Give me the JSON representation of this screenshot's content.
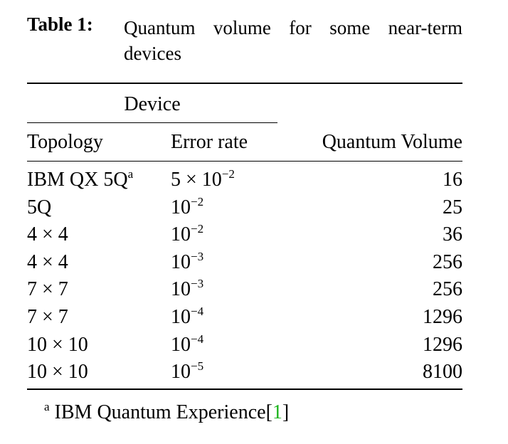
{
  "caption": {
    "label": "Table 1:",
    "text": "Quantum volume for some near-term devices"
  },
  "table": {
    "group_header": "Device",
    "headers": [
      "Topology",
      "Error rate",
      "Quantum Volume"
    ],
    "rows": [
      {
        "topology": "IBM QX 5Q",
        "note": "a",
        "error_base": "5 × 10",
        "error_exp": "−2",
        "volume": 16
      },
      {
        "topology": "5Q",
        "error_base": "10",
        "error_exp": "−2",
        "volume": 25
      },
      {
        "topology": "4 × 4",
        "error_base": "10",
        "error_exp": "−2",
        "volume": 36
      },
      {
        "topology": "4 × 4",
        "error_base": "10",
        "error_exp": "−3",
        "volume": 256
      },
      {
        "topology": "7 × 7",
        "error_base": "10",
        "error_exp": "−3",
        "volume": 256
      },
      {
        "topology": "7 × 7",
        "error_base": "10",
        "error_exp": "−4",
        "volume": 1296
      },
      {
        "topology": "10 × 10",
        "error_base": "10",
        "error_exp": "−4",
        "volume": 1296
      },
      {
        "topology": "10 × 10",
        "error_base": "10",
        "error_exp": "−5",
        "volume": 8100
      }
    ]
  },
  "footnote": {
    "mark": "a",
    "text": "IBM Quantum Experience",
    "ref_open": "[",
    "ref": "1",
    "ref_close": "]"
  }
}
